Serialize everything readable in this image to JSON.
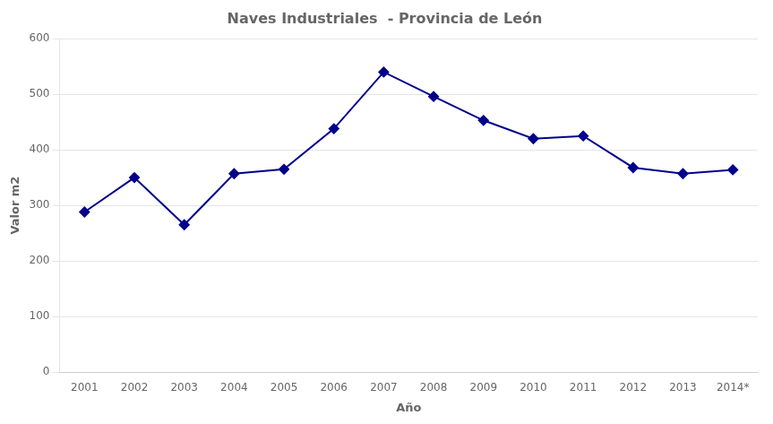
{
  "chart_data": {
    "type": "line",
    "title": "Naves Industriales  - Provincia de León",
    "xlabel": "Año",
    "ylabel": "Valor m2",
    "categories": [
      "2001",
      "2002",
      "2003",
      "2004",
      "2005",
      "2006",
      "2007",
      "2008",
      "2009",
      "2010",
      "2011",
      "2012",
      "2013",
      "2014*"
    ],
    "values": [
      288,
      350,
      265,
      357,
      365,
      438,
      540,
      496,
      453,
      420,
      425,
      368,
      357,
      364
    ],
    "color": "#00008B",
    "marker": "diamond",
    "ylim": [
      0,
      600
    ],
    "yticks": [
      0,
      100,
      200,
      300,
      400,
      500,
      600
    ],
    "grid": true
  }
}
